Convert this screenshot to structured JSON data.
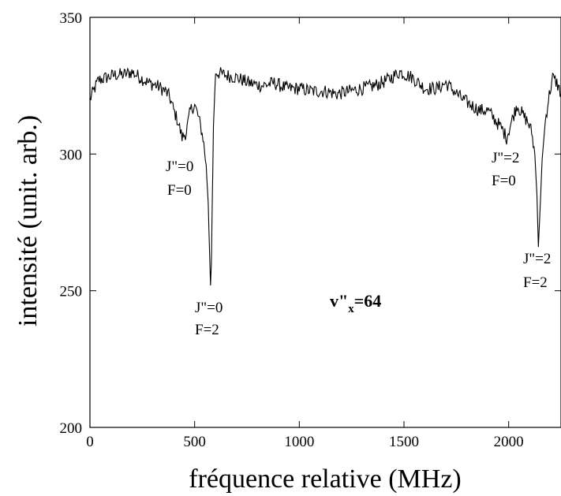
{
  "chart_data": {
    "type": "line",
    "title": "",
    "xlabel": "fréquence relative (MHz)",
    "ylabel": "intensité (unit. arb.)",
    "xlim": [
      0,
      2250
    ],
    "ylim": [
      200,
      350
    ],
    "grid": false,
    "xticks": [
      0,
      500,
      1000,
      1500,
      2000
    ],
    "yticks": [
      200,
      250,
      300,
      350
    ],
    "x_tick_labels": [
      "0",
      "500",
      "1000",
      "1500",
      "2000"
    ],
    "y_tick_labels": [
      "200",
      "250",
      "300",
      "350"
    ],
    "series": [
      {
        "x": [
          0,
          40,
          80,
          120,
          160,
          200,
          240,
          280,
          320,
          360,
          380,
          400,
          420,
          440,
          460,
          480,
          500,
          520,
          540,
          555,
          565,
          572,
          576,
          580,
          584,
          590,
          600,
          640,
          700,
          760,
          820,
          880,
          940,
          1000,
          1060,
          1120,
          1180,
          1240,
          1300,
          1360,
          1420,
          1480,
          1540,
          1600,
          1660,
          1700,
          1740,
          1780,
          1820,
          1860,
          1900,
          1940,
          1970,
          1990,
          2010,
          2040,
          2070,
          2090,
          2110,
          2125,
          2135,
          2142,
          2150,
          2160,
          2175,
          2190,
          2210,
          2230,
          2250
        ],
        "y": [
          320,
          327,
          328,
          329,
          329,
          330,
          328,
          326,
          325,
          323,
          321,
          316,
          312,
          306,
          308,
          316,
          318,
          313,
          306,
          296,
          282,
          262,
          251,
          260,
          282,
          310,
          330,
          329,
          328,
          326,
          325,
          326,
          324,
          324,
          323,
          323,
          322,
          323,
          324,
          325,
          327,
          330,
          328,
          324,
          324,
          326,
          323,
          320,
          318,
          316,
          316,
          312,
          309,
          306,
          311,
          318,
          314,
          312,
          308,
          300,
          285,
          266,
          280,
          298,
          312,
          320,
          328,
          326,
          322
        ]
      }
    ]
  },
  "annotations": {
    "j0f0_line1": "J\"=0",
    "j0f0_line2": "F=0",
    "j0f2_line1": "J\"=0",
    "j0f2_line2": "F=2",
    "j2f0_line1": "J\"=2",
    "j2f0_line2": "F=0",
    "j2f2_line1": "J\"=2",
    "j2f2_line2": "F=2",
    "vib_label_main": "v\"",
    "vib_label_sub": "x",
    "vib_label_val": "=64"
  }
}
